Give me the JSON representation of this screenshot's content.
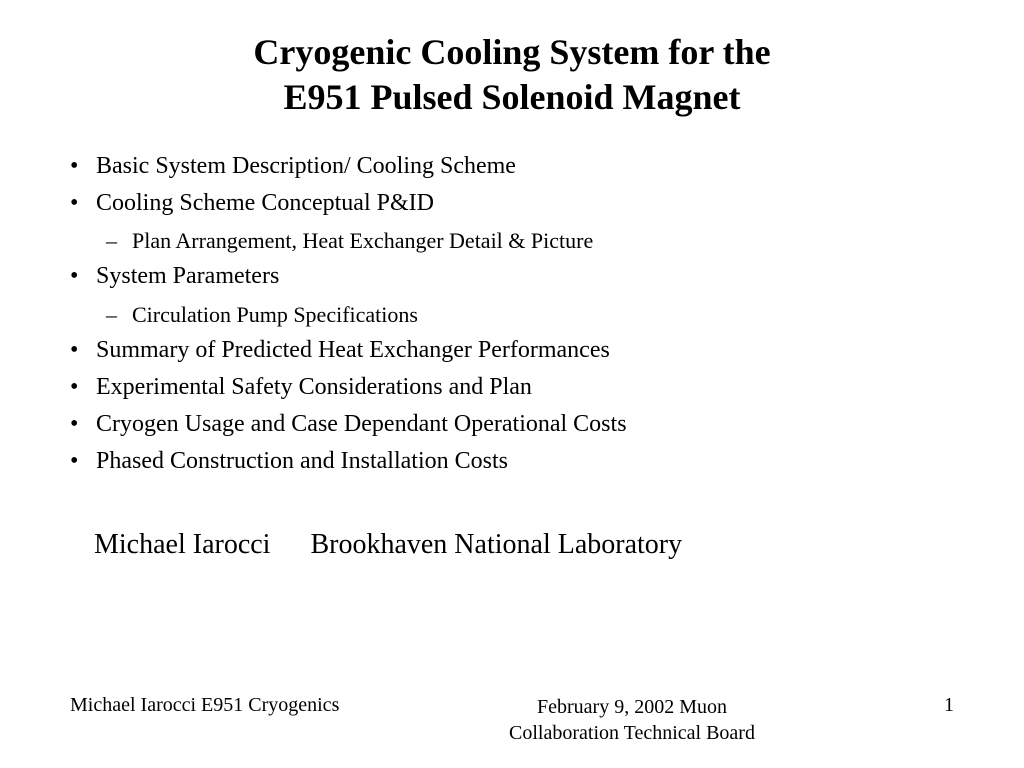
{
  "title_line1": "Cryogenic Cooling System for the",
  "title_line2": "E951 Pulsed Solenoid Magnet",
  "bullets": {
    "b1": "Basic System Description/ Cooling Scheme",
    "b2": "Cooling Scheme Conceptual P&ID",
    "b2_1": "Plan Arrangement, Heat Exchanger Detail & Picture",
    "b3": "System Parameters",
    "b3_1": "Circulation Pump Specifications",
    "b4": "Summary of Predicted Heat Exchanger Performances",
    "b5": "Experimental Safety Considerations and Plan",
    "b6": "Cryogen Usage and Case Dependant Operational Costs",
    "b7": "Phased Construction and Installation Costs"
  },
  "author": "Michael Iarocci",
  "affiliation": "Brookhaven National Laboratory",
  "footer": {
    "left": "Michael Iarocci  E951 Cryogenics",
    "center_line1": "February 9, 2002 Muon",
    "center_line2": "Collaboration Technical Board",
    "page": "1"
  },
  "colors": {
    "text": "#000000",
    "background": "#ffffff"
  },
  "fonts": {
    "title_family": "Comic Sans MS",
    "body_family": "Comic Sans MS",
    "author_family": "Times New Roman",
    "footer_family": "Times New Roman",
    "title_size_pt": 27,
    "body_size_pt": 18,
    "sub_size_pt": 16,
    "author_size_pt": 21,
    "footer_size_pt": 15
  }
}
